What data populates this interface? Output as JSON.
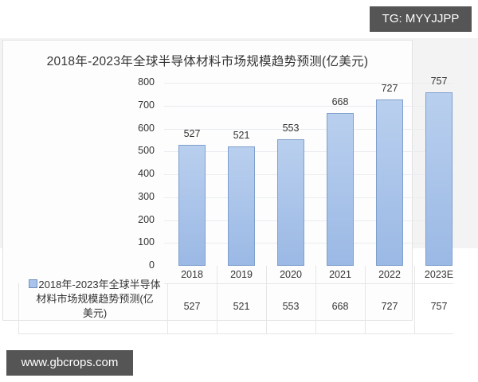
{
  "watermarks": {
    "top_right": "TG: MYYJJPP",
    "bottom_left": "www.gbcrops.com"
  },
  "chart_data": {
    "type": "bar",
    "title": "2018年-2023年全球半导体材料市场规模趋势预测(亿美元)",
    "categories": [
      "2018",
      "2019",
      "2020",
      "2021",
      "2022",
      "2023E"
    ],
    "series": [
      {
        "name": "2018年-2023年全球半导体材料市场规模趋势预测(亿美元)",
        "values": [
          527,
          521,
          553,
          668,
          727,
          757
        ],
        "color": "#a9c3ea"
      }
    ],
    "xlabel": "",
    "ylabel": "",
    "ylim": [
      0,
      800
    ],
    "yticks": [
      0,
      100,
      200,
      300,
      400,
      500,
      600,
      700,
      800
    ],
    "grid": true,
    "data_labels": true,
    "data_table": true,
    "legend_position": "data-table"
  },
  "table": {
    "legend_lines": [
      "2018年-2023年全球半导体",
      "材料市场规模趋势预测(亿",
      "美元)"
    ],
    "values": [
      "527",
      "521",
      "553",
      "668",
      "727",
      "757"
    ]
  }
}
